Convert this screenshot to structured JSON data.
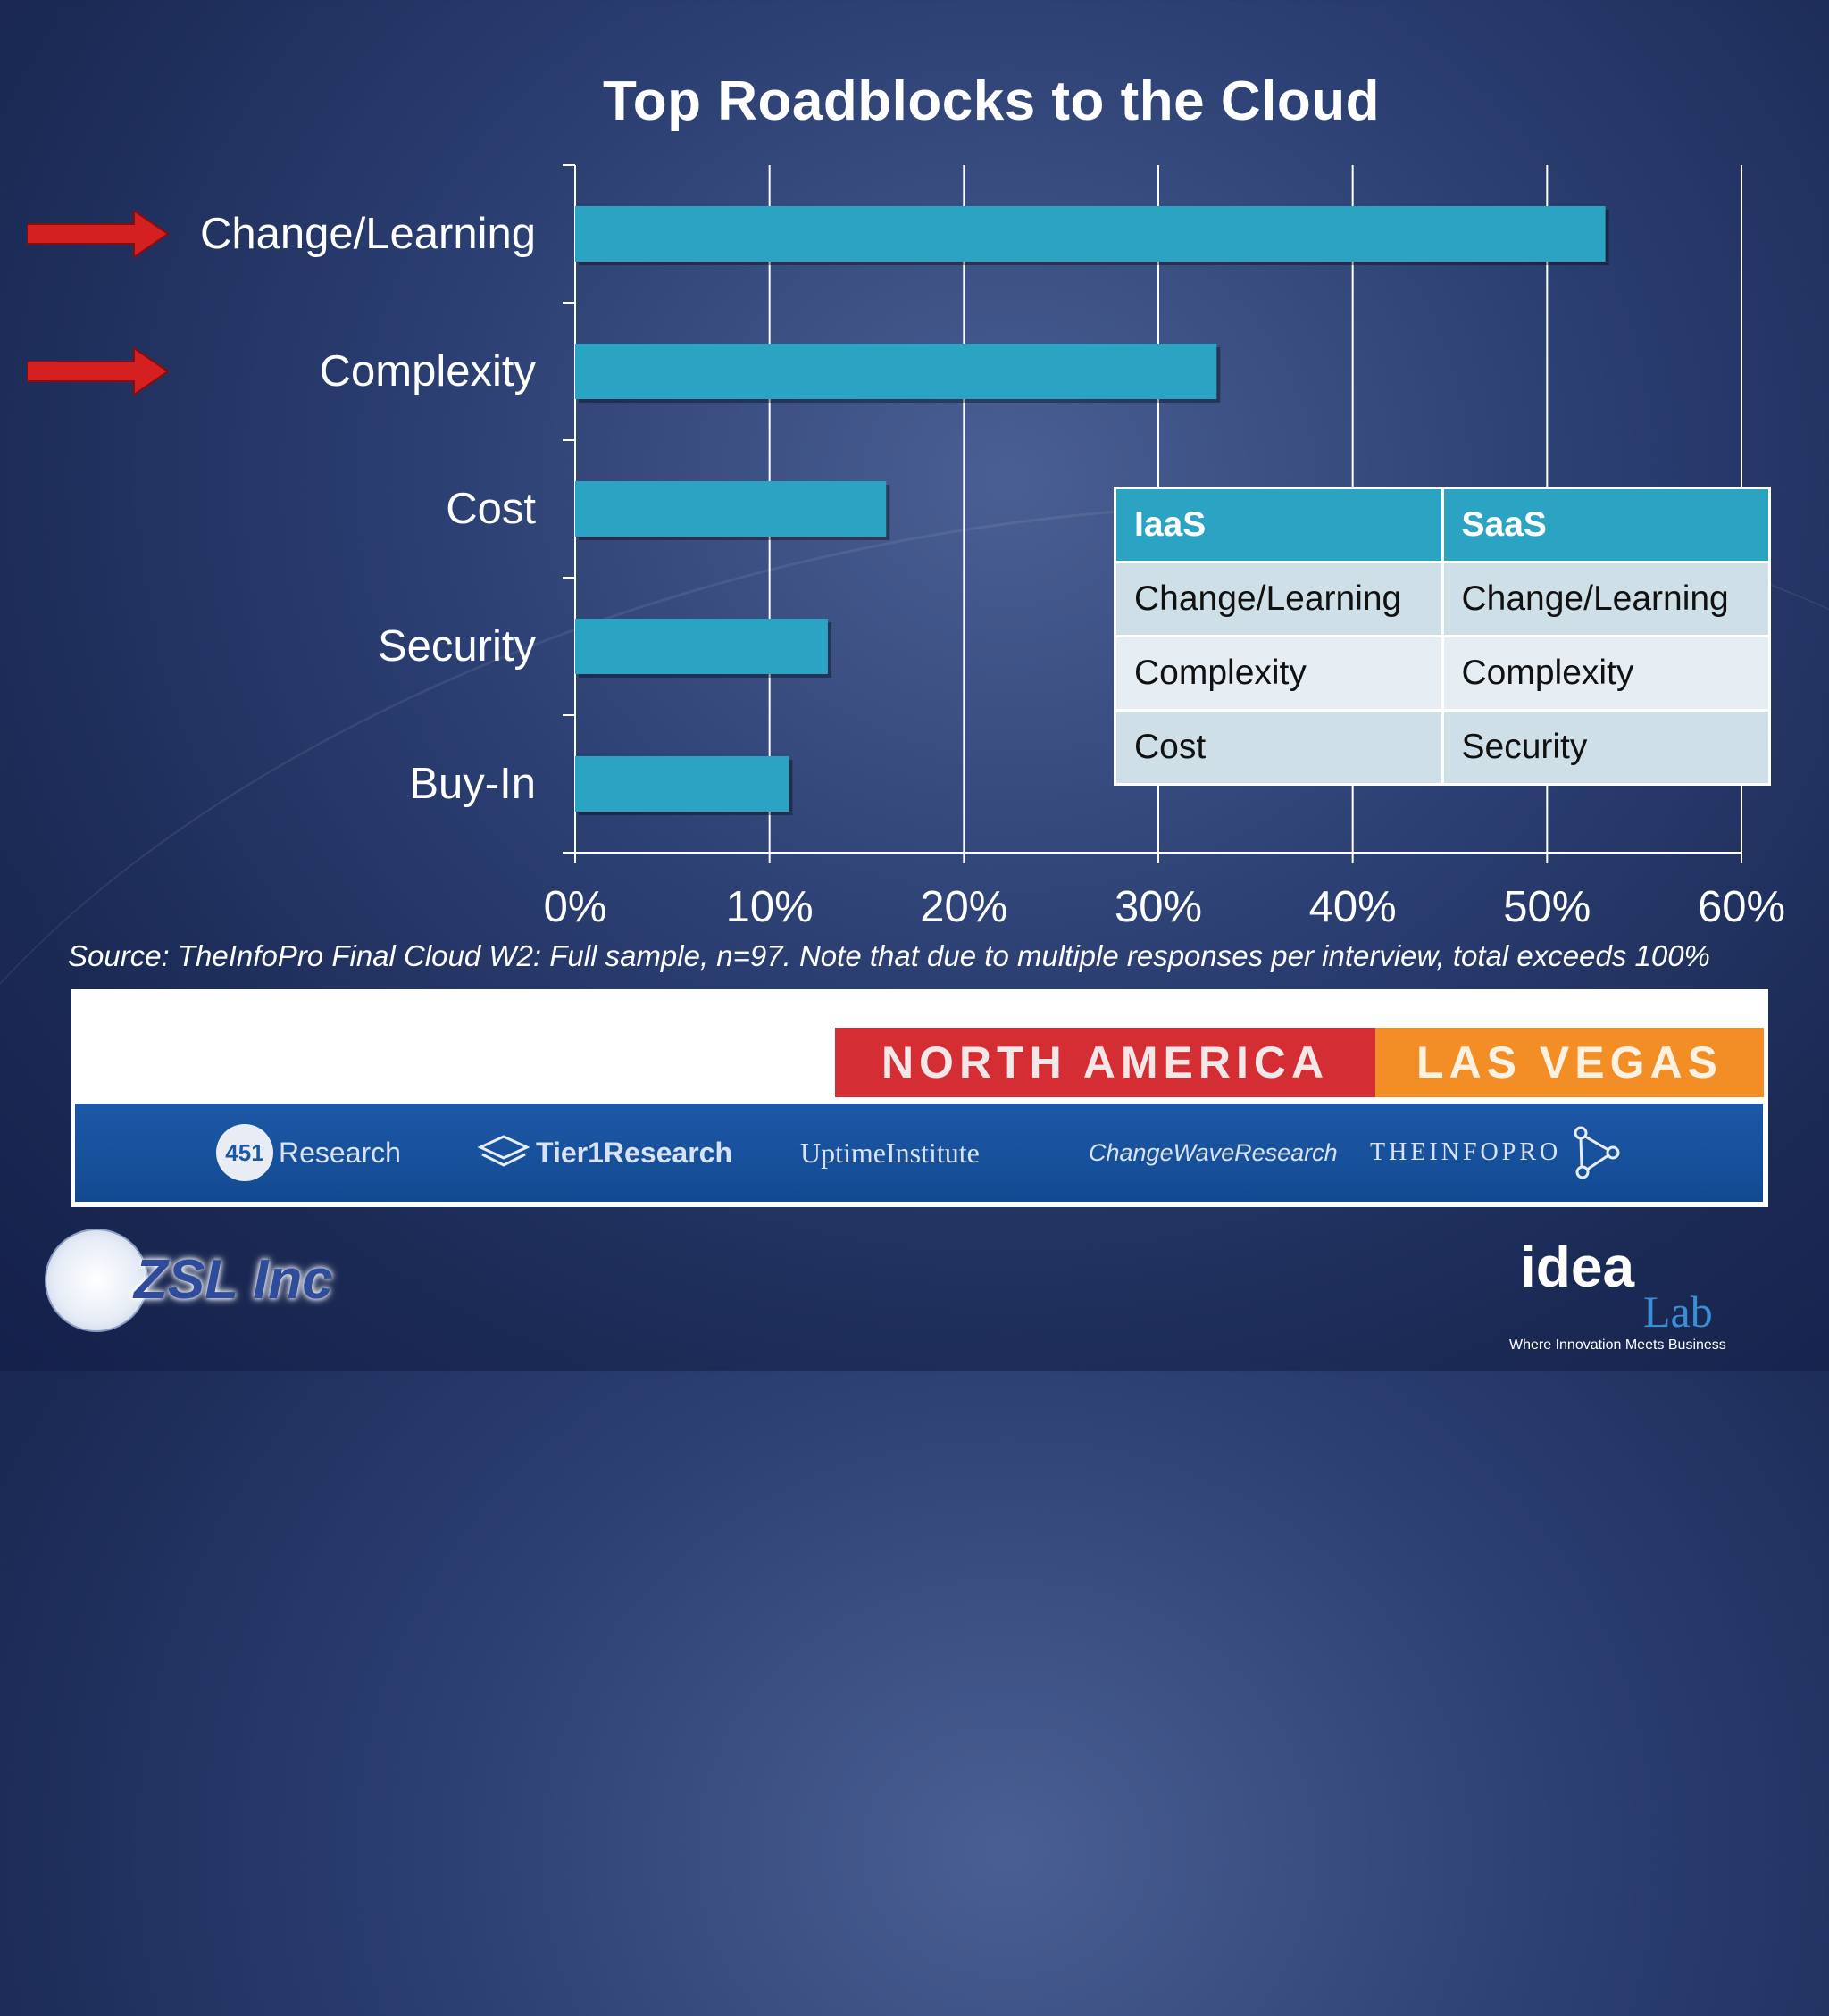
{
  "chart_data": {
    "type": "bar",
    "orientation": "horizontal",
    "title": "Top Roadblocks to the Cloud",
    "categories": [
      "Change/Learning",
      "Complexity",
      "Cost",
      "Security",
      "Buy-In"
    ],
    "values": [
      53,
      33,
      16,
      13,
      11
    ],
    "highlighted": [
      "Change/Learning",
      "Complexity"
    ],
    "xlim": [
      0,
      60
    ],
    "xticks": [
      "0%",
      "10%",
      "20%",
      "30%",
      "40%",
      "50%",
      "60%"
    ],
    "grid": "vertical",
    "bar_color": "#2ba3c2",
    "arrow_color": "#d42020"
  },
  "source": "Source: TheInfoPro Final Cloud W2: Full sample, n=97. Note that due to multiple responses per interview, total exceeds 100%",
  "table": {
    "headers": [
      "IaaS",
      "SaaS"
    ],
    "rows": [
      [
        "Change/Learning",
        "Change/Learning"
      ],
      [
        "Complexity",
        "Complexity"
      ],
      [
        "Cost",
        "Security"
      ]
    ]
  },
  "banner": {
    "region": "NORTH AMERICA",
    "city": "LAS VEGAS",
    "partners": [
      "451",
      "Research",
      "Tier1Research",
      "UptimeInstitute",
      "ChangeWaveResearch",
      "THEINFOPRO"
    ]
  },
  "logos": {
    "zsl": "ZSL Inc",
    "idea": "idea",
    "lab": "Lab",
    "tagline": "Where Innovation Meets Business"
  }
}
